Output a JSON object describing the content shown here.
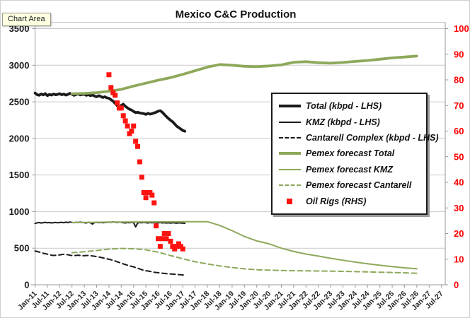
{
  "tooltip": {
    "label": "Chart Area"
  },
  "title": "Mexico C&C Production",
  "legend": {
    "items": [
      {
        "label": "Total (kbpd - LHS)"
      },
      {
        "label": "KMZ (kbpd - LHS)"
      },
      {
        "label": "Cantarell Complex (kbpd - LHS)"
      },
      {
        "label": "Pemex forecast Total"
      },
      {
        "label": "Pemex forecast KMZ"
      },
      {
        "label": "Pemex forecast Cantarell"
      },
      {
        "label": "Oil Rigs (RHS)"
      }
    ]
  },
  "colors": {
    "olive": "#8ea85b",
    "red": "#fd1410",
    "black_line": "#1a1a1a",
    "grid": "#c9c9c9",
    "axis": "#9a9a9a",
    "right_axis_text": "#ff0000",
    "left_axis_text": "#1a1a1a"
  },
  "chart_data": {
    "type": "line",
    "title": "Mexico C&C Production",
    "left_axis": {
      "label": "kbpd",
      "range": [
        0,
        3500
      ],
      "major_unit": 500,
      "ticks": [
        0,
        500,
        1000,
        1500,
        2000,
        2500,
        3000,
        3500
      ]
    },
    "right_axis": {
      "label": "Oil Rigs",
      "range": [
        0,
        100
      ],
      "major_unit": 10,
      "ticks": [
        0,
        10,
        20,
        30,
        40,
        50,
        60,
        70,
        80,
        90,
        100
      ]
    },
    "x_axis": {
      "unit": "months since Jan-11",
      "tick_labels": [
        "Jan-11",
        "Jul-11",
        "Jan-12",
        "Jul-12",
        "Jan-13",
        "Jul-13",
        "Jan-14",
        "Jul-14",
        "Jan-15",
        "Jul-15",
        "Jan-16",
        "Jul-16",
        "Jan-17",
        "Jul-17",
        "Jan-18",
        "Jul-18",
        "Jan-19",
        "Jul-19",
        "Jan-20",
        "Jul-20",
        "Jan-21",
        "Jul-21",
        "Jan-22",
        "Jul-22",
        "Jan-23",
        "Jul-23",
        "Jan-24",
        "Jul-24",
        "Jan-25",
        "Jul-25",
        "Jan-26",
        "Jul-26",
        "Jan-27",
        "Jul-27"
      ],
      "tick_step_months": 6
    },
    "grid": true,
    "legend_position": "center-right box",
    "series": [
      {
        "name": "Total (kbpd - LHS)",
        "axis": "left",
        "style": "solid",
        "thickness": "thick",
        "color": "#1a1a1a",
        "start": "Jan-11",
        "start_month_index": 0,
        "step_months": 1,
        "values": [
          2620,
          2598,
          2590,
          2607,
          2594,
          2612,
          2585,
          2600,
          2592,
          2606,
          2596,
          2601,
          2611,
          2596,
          2606,
          2591,
          2601,
          2616,
          2604,
          2589,
          2599,
          2609,
          2594,
          2599,
          2604,
          2589,
          2599,
          2584,
          2594,
          2579,
          2569,
          2584,
          2574,
          2559,
          2569,
          2554,
          2549,
          2529,
          2509,
          2479,
          2449,
          2409,
          2452,
          2468,
          2438,
          2418,
          2398,
          2388,
          2368,
          2352,
          2358,
          2348,
          2342,
          2338,
          2328,
          2342,
          2332,
          2338,
          2348,
          2358,
          2372,
          2378,
          2358,
          2328,
          2298,
          2272,
          2248,
          2228,
          2198,
          2168,
          2148,
          2128,
          2108,
          2098
        ]
      },
      {
        "name": "KMZ (kbpd - LHS)",
        "axis": "left",
        "style": "solid",
        "thickness": "thin",
        "color": "#1a1a1a",
        "start": "Jan-11",
        "start_month_index": 0,
        "step_months": 1,
        "values": [
          838,
          846,
          851,
          844,
          849,
          854,
          847,
          851,
          845,
          849,
          852,
          847,
          851,
          854,
          849,
          855,
          851,
          857,
          853,
          849,
          854,
          851,
          855,
          852,
          849,
          844,
          854,
          847,
          829,
          851,
          854,
          849,
          852,
          847,
          851,
          854,
          857,
          854,
          859,
          855,
          851,
          857,
          853,
          849,
          845,
          851,
          847,
          854,
          849,
          792,
          844,
          851,
          847,
          854,
          849,
          845,
          851,
          847,
          852,
          849,
          847,
          851,
          845,
          849,
          844,
          847,
          842,
          849,
          845,
          841,
          847,
          844,
          842,
          840
        ]
      },
      {
        "name": "Cantarell Complex (kbpd - LHS)",
        "axis": "left",
        "style": "dashed",
        "thickness": "thin",
        "color": "#1a1a1a",
        "start": "Jan-11",
        "start_month_index": 0,
        "step_months": 1,
        "values": [
          462,
          455,
          448,
          440,
          431,
          425,
          418,
          411,
          405,
          401,
          403,
          405,
          408,
          412,
          417,
          414,
          410,
          405,
          400,
          398,
          402,
          405,
          400,
          396,
          398,
          400,
          402,
          398,
          394,
          390,
          385,
          380,
          375,
          368,
          362,
          355,
          349,
          342,
          334,
          325,
          315,
          305,
          295,
          286,
          276,
          268,
          260,
          252,
          245,
          235,
          226,
          216,
          206,
          198,
          192,
          188,
          183,
          178,
          172,
          168,
          165,
          161,
          158,
          155,
          152,
          150,
          148,
          146,
          144,
          142,
          139,
          137,
          134,
          131
        ]
      },
      {
        "name": "Pemex forecast Total",
        "axis": "left",
        "style": "solid",
        "thickness": "thick",
        "color": "#8ea85b",
        "start": "Jul-12",
        "start_month_index": 18,
        "step_months": 6,
        "values": [
          2610,
          2615,
          2625,
          2645,
          2670,
          2715,
          2755,
          2795,
          2830,
          2875,
          2925,
          2975,
          3010,
          3000,
          2985,
          2980,
          2990,
          3005,
          3040,
          3048,
          3035,
          3028,
          3038,
          3052,
          3065,
          3082,
          3100,
          3112,
          3125
        ]
      },
      {
        "name": "Pemex forecast KMZ",
        "axis": "left",
        "style": "solid",
        "thickness": "thin",
        "color": "#8ea85b",
        "start": "Jul-12",
        "start_month_index": 18,
        "step_months": 6,
        "values": [
          850,
          852,
          854,
          856,
          857,
          858,
          858,
          859,
          860,
          861,
          862,
          862,
          810,
          740,
          660,
          600,
          560,
          500,
          455,
          420,
          392,
          362,
          335,
          310,
          288,
          266,
          248,
          232,
          218
        ]
      },
      {
        "name": "Pemex forecast Cantarell",
        "axis": "left",
        "style": "dashed",
        "thickness": "thin",
        "color": "#8ea85b",
        "start": "Jul-12",
        "start_month_index": 18,
        "step_months": 6,
        "values": [
          438,
          452,
          468,
          488,
          496,
          492,
          478,
          445,
          400,
          355,
          315,
          285,
          258,
          236,
          218,
          206,
          200,
          196,
          192,
          190,
          188,
          186,
          183,
          180,
          176,
          172,
          168,
          163,
          157
        ]
      }
    ],
    "scatter": {
      "name": "Oil Rigs (RHS)",
      "axis": "right",
      "marker": "square",
      "color": "#fd1410",
      "start": "Jan-14",
      "start_month_index": 36,
      "step_months": 1,
      "values": [
        82,
        77,
        75,
        74,
        71,
        69,
        69,
        66,
        64,
        62,
        59,
        60,
        62,
        56,
        54,
        48,
        42,
        36,
        34,
        36,
        36,
        35,
        32,
        23,
        18,
        15,
        18,
        20,
        18,
        20,
        17,
        15,
        14,
        15,
        16,
        15,
        14
      ]
    }
  }
}
